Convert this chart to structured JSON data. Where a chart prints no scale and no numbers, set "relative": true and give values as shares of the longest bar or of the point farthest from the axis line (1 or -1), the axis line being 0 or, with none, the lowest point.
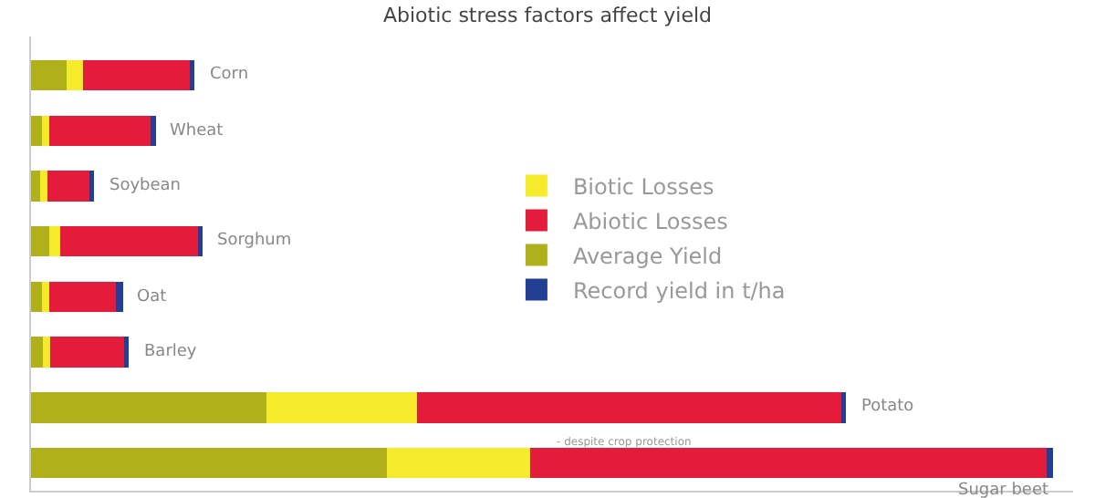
{
  "chart_data": {
    "type": "bar",
    "orientation": "horizontal",
    "stacked": true,
    "relative": true,
    "title": "Abiotic stress factors affect yield",
    "categories": [
      "Corn",
      "Wheat",
      "Soybean",
      "Sorghum",
      "Oat",
      "Barley",
      "Potato",
      "Sugar beet"
    ],
    "series": [
      {
        "name": "Average Yield",
        "color": "#b0b01a",
        "values": [
          0.035,
          0.011,
          0.009,
          0.018,
          0.011,
          0.012,
          0.23,
          0.348
        ]
      },
      {
        "name": "Biotic Losses",
        "color": "#f5eb2a",
        "values": [
          0.016,
          0.007,
          0.007,
          0.011,
          0.007,
          0.007,
          0.148,
          0.141
        ]
      },
      {
        "name": "Abiotic Losses",
        "color": "#e41b3a",
        "values": [
          0.104,
          0.099,
          0.041,
          0.134,
          0.065,
          0.072,
          0.415,
          0.505
        ]
      },
      {
        "name": "Record yield in t/ha",
        "color": "#233f93",
        "values": [
          0.005,
          0.005,
          0.005,
          0.005,
          0.007,
          0.005,
          0.005,
          0.006
        ]
      }
    ],
    "legend": "center",
    "annotations": [
      "- despite crop protection"
    ],
    "grid": false
  }
}
